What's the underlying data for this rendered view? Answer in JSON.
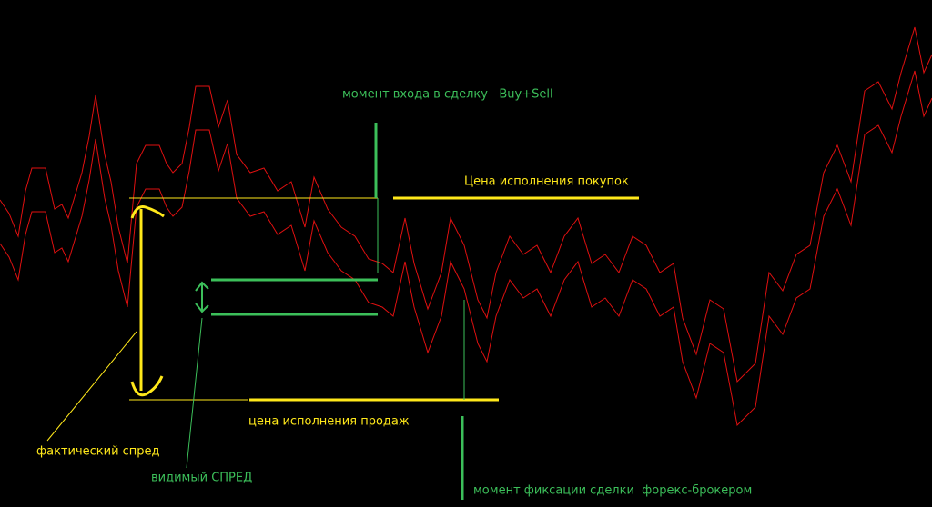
{
  "annotations": [
    {
      "text": "момент входа в сделку   Buy+Sell"
    },
    {
      "text": "Цена исполнения покупок"
    },
    {
      "text": "цена исполнения продаж"
    },
    {
      "text": "фактический спред"
    },
    {
      "text": "видимый СПРЕД"
    },
    {
      "text": "момент фиксации сделки  форекс-брокером"
    }
  ]
}
